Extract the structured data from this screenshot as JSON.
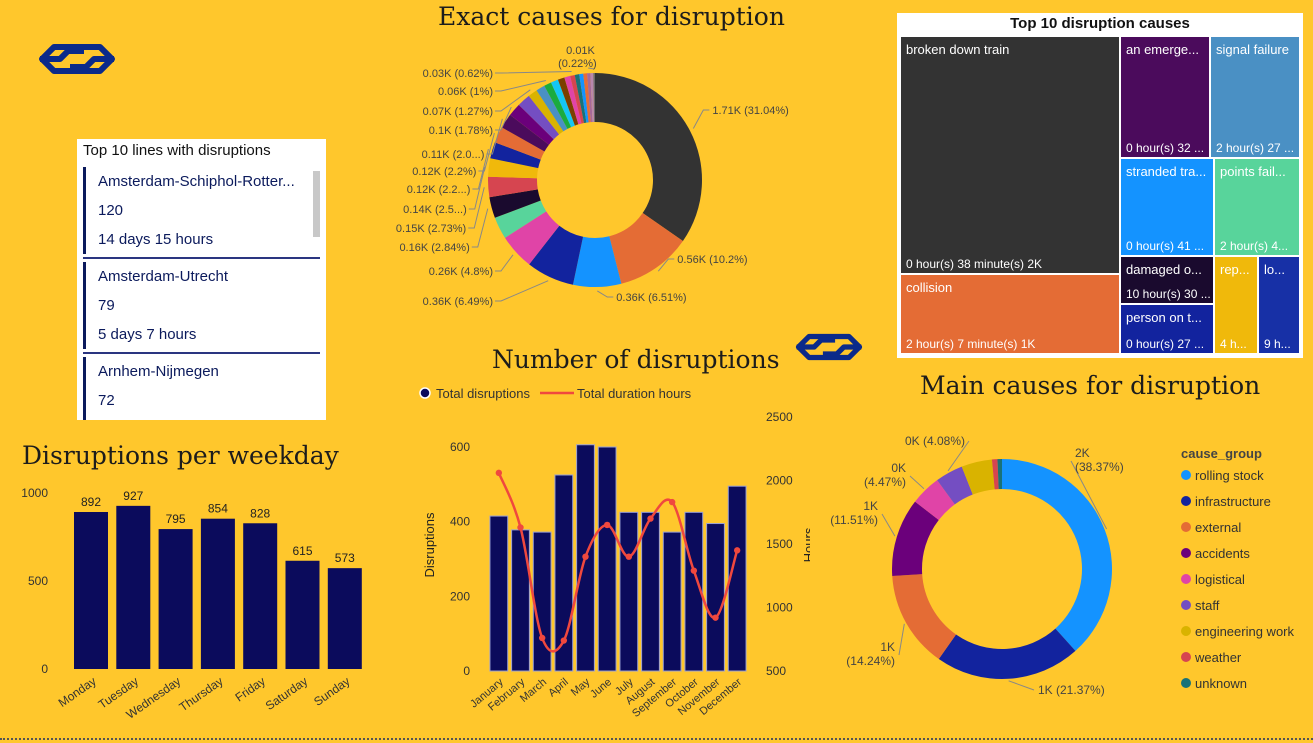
{
  "titles": {
    "exact_causes": "Exact causes for disruption",
    "number_of_disruptions": "Number of disruptions",
    "main_causes": "Main causes for disruption",
    "weekday": "Disruptions per weekday"
  },
  "top_lines": {
    "title": "Top 10 lines with disruptions",
    "items": [
      {
        "name": "Amsterdam-Schiphol-Rotter...",
        "count": "120",
        "duration": "14 days 15 hours"
      },
      {
        "name": "Amsterdam-Utrecht",
        "count": "79",
        "duration": "5 days 7 hours"
      },
      {
        "name": "Arnhem-Nijmegen",
        "count": "72",
        "duration": ""
      }
    ]
  },
  "treemap": {
    "title": "Top 10 disruption causes",
    "cells": [
      {
        "name": "broken down train",
        "value": "0 hour(s) 38 minute(s) 2K",
        "color": "#333333"
      },
      {
        "name": "collision",
        "value": "2 hour(s) 7 minute(s) 1K",
        "color": "#E46C35"
      },
      {
        "name": "an emerge...",
        "value": "0 hour(s) 32 ...",
        "color": "#4B0B5C"
      },
      {
        "name": "signal failure",
        "value": "2 hour(s) 27 ...",
        "color": "#4A90C4"
      },
      {
        "name": "stranded tra...",
        "value": "0 hour(s) 41 ...",
        "color": "#1493FF"
      },
      {
        "name": "points fail...",
        "value": "2 hour(s) 4...",
        "color": "#58D49B"
      },
      {
        "name": "damaged o...",
        "value": "10 hour(s) 30 ...",
        "color": "#1A0A2E"
      },
      {
        "name": "person on t...",
        "value": "0 hour(s) 27 ...",
        "color": "#12239E"
      },
      {
        "name": "rep...",
        "value": "4 h...",
        "color": "#F0B90B"
      },
      {
        "name": "lo...",
        "value": "9 h...",
        "color": "#1730A6"
      }
    ]
  },
  "chart_data": [
    {
      "type": "pie",
      "title": "Exact causes for disruption",
      "slices": [
        {
          "value": 31.04,
          "label": "1.71K (31.04%)",
          "color": "#333333"
        },
        {
          "value": 10.2,
          "label": "0.56K (10.2%)",
          "color": "#E46C35"
        },
        {
          "value": 6.51,
          "label": "0.36K (6.51%)",
          "color": "#1493FF"
        },
        {
          "value": 6.49,
          "label": "0.36K (6.49%)",
          "color": "#12239E"
        },
        {
          "value": 4.8,
          "label": "0.26K (4.8%)",
          "color": "#E044A7"
        },
        {
          "value": 3.0,
          "label": "",
          "color": "#58D49B"
        },
        {
          "value": 2.84,
          "label": "0.16K (2.84%)",
          "color": "#1A0A2E"
        },
        {
          "value": 2.73,
          "label": "0.15K (2.73%)",
          "color": "#D64550"
        },
        {
          "value": 2.5,
          "label": "0.14K (2.5...)",
          "color": "#F0B90B"
        },
        {
          "value": 2.2,
          "label": "0.12K (2.2...)",
          "color": "#12239E"
        },
        {
          "value": 2.2,
          "label": "0.12K (2.2%)",
          "color": "#E46C35"
        },
        {
          "value": 2.0,
          "label": "0.11K (2.0...)",
          "color": "#4B0B5C"
        },
        {
          "value": 1.78,
          "label": "0.1K (1.78%)",
          "color": "#6B007B"
        },
        {
          "value": 1.78,
          "label": "",
          "color": "#744EC2"
        },
        {
          "value": 1.27,
          "label": "0.07K (1.27%)",
          "color": "#D9B300"
        },
        {
          "value": 1.2,
          "label": "",
          "color": "#4A90C4"
        },
        {
          "value": 1.0,
          "label": "0.06K (1%)",
          "color": "#1AAB40"
        },
        {
          "value": 1.0,
          "label": "",
          "color": "#15C6F4"
        },
        {
          "value": 0.9,
          "label": "",
          "color": "#7B3F00"
        },
        {
          "value": 0.8,
          "label": "",
          "color": "#E044A7"
        },
        {
          "value": 0.62,
          "label": "0.03K (0.62%)",
          "color": "#D64550"
        },
        {
          "value": 0.6,
          "label": "",
          "color": "#197278"
        },
        {
          "value": 0.55,
          "label": "",
          "color": "#1493FF"
        },
        {
          "value": 0.5,
          "label": "",
          "color": "#E66C37"
        },
        {
          "value": 0.45,
          "label": "",
          "color": "#A66999"
        },
        {
          "value": 0.4,
          "label": "",
          "color": "#B887AD"
        },
        {
          "value": 0.22,
          "label": "0.01K (0.22%)",
          "color": "#6B6B6B"
        }
      ]
    },
    {
      "type": "bar",
      "title": "Disruptions per weekday",
      "categories": [
        "Monday",
        "Tuesday",
        "Wednesday",
        "Thursday",
        "Friday",
        "Saturday",
        "Sunday"
      ],
      "values": [
        892,
        927,
        795,
        854,
        828,
        615,
        573
      ],
      "ylim": [
        0,
        1000
      ],
      "yticks": [
        0,
        500,
        1000
      ],
      "color": "#0B0B5C"
    },
    {
      "type": "bar",
      "title": "Number of disruptions",
      "categories": [
        "January",
        "February",
        "March",
        "April",
        "May",
        "June",
        "July",
        "August",
        "September",
        "October",
        "November",
        "December"
      ],
      "series": [
        {
          "name": "Total disruptions",
          "type": "bar",
          "values": [
            415,
            378,
            372,
            525,
            606,
            600,
            425,
            425,
            372,
            425,
            395,
            495
          ],
          "color": "#0B0B5C"
        },
        {
          "name": "Total duration hours",
          "type": "line",
          "values": [
            2060,
            1630,
            760,
            740,
            1400,
            1650,
            1400,
            1700,
            1830,
            1290,
            920,
            1450
          ],
          "color": "#F0483E"
        }
      ],
      "ylabel": "Disruptions",
      "y2label": "Hours",
      "ylim": [
        0,
        600
      ],
      "y2lim": [
        500,
        2500
      ],
      "yticks": [
        0,
        200,
        400,
        600
      ],
      "y2ticks": [
        500,
        1000,
        1500,
        2000,
        2500
      ]
    },
    {
      "type": "pie",
      "title": "Main causes for disruption",
      "legend_title": "cause_group",
      "slices": [
        {
          "name": "rolling stock",
          "value": 38.37,
          "label1": "2K",
          "label2": "(38.37%)",
          "color": "#1493FF"
        },
        {
          "name": "infrastructure",
          "value": 21.37,
          "label1": "",
          "label2": "1K (21.37%)",
          "color": "#12239E"
        },
        {
          "name": "external",
          "value": 14.24,
          "label1": "1K",
          "label2": "(14.24%)",
          "color": "#E46C35"
        },
        {
          "name": "accidents",
          "value": 11.51,
          "label1": "1K",
          "label2": "(11.51%)",
          "color": "#6B007B"
        },
        {
          "name": "logistical",
          "value": 4.47,
          "label1": "0K",
          "label2": "(4.47%)",
          "color": "#E044A7"
        },
        {
          "name": "staff",
          "value": 4.08,
          "label1": "",
          "label2": "0K (4.08%)",
          "color": "#744EC2"
        },
        {
          "name": "engineering work",
          "value": 4.5,
          "label1": "",
          "label2": "",
          "color": "#D9B300"
        },
        {
          "name": "weather",
          "value": 0.8,
          "label1": "",
          "label2": "",
          "color": "#D64550"
        },
        {
          "name": "unknown",
          "value": 0.66,
          "label1": "",
          "label2": "",
          "color": "#197278"
        }
      ]
    }
  ]
}
